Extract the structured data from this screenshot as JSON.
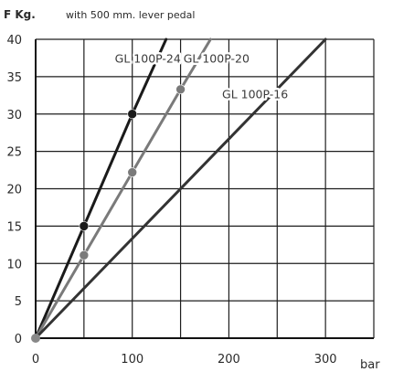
{
  "chart_data": {
    "type": "line",
    "subtitle": "with 500 mm. lever pedal",
    "ylabel": "F Kg.",
    "xlabel": "bar",
    "xlim": [
      0,
      350
    ],
    "ylim": [
      0,
      40
    ],
    "xticks": [
      0,
      100,
      200,
      300
    ],
    "yticks": [
      0,
      5,
      10,
      15,
      20,
      25,
      30,
      35,
      40
    ],
    "x_gridlines": [
      0,
      50,
      100,
      150,
      200,
      250,
      300,
      350
    ],
    "y_gridlines": [
      0,
      5,
      10,
      15,
      20,
      25,
      30,
      35,
      40
    ],
    "grid": true,
    "series": [
      {
        "name": "GL 100P-24",
        "color": "#1a1a1a",
        "x": [
          0,
          50,
          100,
          135
        ],
        "y": [
          0,
          15,
          30,
          40
        ],
        "markers": [
          [
            50,
            15
          ],
          [
            100,
            30
          ]
        ]
      },
      {
        "name": "GL 100P-20",
        "color": "#7a7a7a",
        "x": [
          0,
          50,
          100,
          150,
          181
        ],
        "y": [
          0,
          11.1,
          22.2,
          33.3,
          40
        ],
        "markers": [
          [
            50,
            11.1
          ],
          [
            100,
            22.2
          ],
          [
            150,
            33.3
          ]
        ]
      },
      {
        "name": "GL 100P-16",
        "color": "#333333",
        "x": [
          0,
          300
        ],
        "y": [
          0,
          40
        ],
        "markers": []
      }
    ]
  }
}
